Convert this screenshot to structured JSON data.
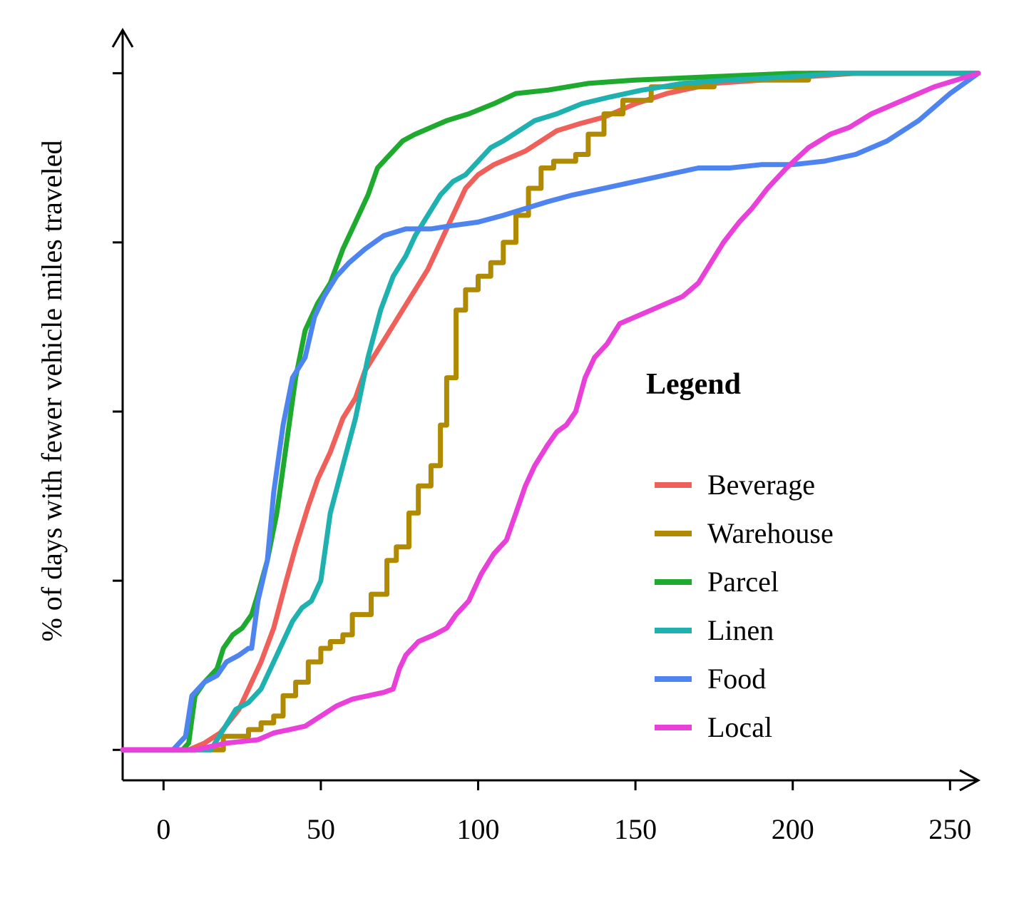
{
  "chart_data": {
    "type": "line",
    "ylabel": "% of days with fewer vehicle miles traveled",
    "xlabel": "",
    "xlim": [
      -13,
      259
    ],
    "ylim": [
      -0.045,
      1.045
    ],
    "x_ticks": [
      0,
      50,
      100,
      150,
      200,
      250
    ],
    "y_ticks": [
      0,
      0.25,
      0.5,
      0.75,
      1.0
    ],
    "y_tick_labels_shown": false,
    "grid": false,
    "legend": {
      "title": "Legend",
      "position": "right"
    },
    "series": [
      {
        "name": "Beverage",
        "color": "#F0605A",
        "points": [
          [
            -13,
            0
          ],
          [
            8,
            0
          ],
          [
            13,
            0.01
          ],
          [
            18,
            0.025
          ],
          [
            24,
            0.06
          ],
          [
            28,
            0.1
          ],
          [
            31,
            0.13
          ],
          [
            35,
            0.18
          ],
          [
            39,
            0.25
          ],
          [
            42,
            0.3
          ],
          [
            46,
            0.36
          ],
          [
            49,
            0.4
          ],
          [
            53,
            0.44
          ],
          [
            57,
            0.49
          ],
          [
            61,
            0.52
          ],
          [
            64,
            0.56
          ],
          [
            68,
            0.59
          ],
          [
            72,
            0.62
          ],
          [
            76,
            0.65
          ],
          [
            80,
            0.68
          ],
          [
            84,
            0.71
          ],
          [
            88,
            0.75
          ],
          [
            92,
            0.79
          ],
          [
            96,
            0.83
          ],
          [
            100,
            0.85
          ],
          [
            105,
            0.865
          ],
          [
            110,
            0.875
          ],
          [
            115,
            0.885
          ],
          [
            120,
            0.9
          ],
          [
            125,
            0.915
          ],
          [
            132,
            0.925
          ],
          [
            140,
            0.935
          ],
          [
            150,
            0.955
          ],
          [
            160,
            0.97
          ],
          [
            175,
            0.985
          ],
          [
            190,
            0.99
          ],
          [
            205,
            0.995
          ],
          [
            220,
            1.0
          ],
          [
            259,
            1.0
          ]
        ]
      },
      {
        "name": "Warehouse",
        "color": "#B08A00",
        "points": [
          [
            -13,
            0
          ],
          [
            19,
            0
          ],
          [
            19,
            0.02
          ],
          [
            27,
            0.02
          ],
          [
            27,
            0.03
          ],
          [
            31,
            0.03
          ],
          [
            31,
            0.04
          ],
          [
            35,
            0.04
          ],
          [
            35,
            0.05
          ],
          [
            38,
            0.05
          ],
          [
            38,
            0.08
          ],
          [
            42,
            0.08
          ],
          [
            42,
            0.1
          ],
          [
            46,
            0.1
          ],
          [
            46,
            0.13
          ],
          [
            50,
            0.13
          ],
          [
            50,
            0.15
          ],
          [
            53,
            0.15
          ],
          [
            53,
            0.16
          ],
          [
            57,
            0.16
          ],
          [
            57,
            0.17
          ],
          [
            60,
            0.17
          ],
          [
            60,
            0.2
          ],
          [
            66,
            0.2
          ],
          [
            66,
            0.23
          ],
          [
            71,
            0.23
          ],
          [
            71,
            0.28
          ],
          [
            74,
            0.28
          ],
          [
            74,
            0.3
          ],
          [
            78,
            0.3
          ],
          [
            78,
            0.35
          ],
          [
            81,
            0.35
          ],
          [
            81,
            0.39
          ],
          [
            85,
            0.39
          ],
          [
            85,
            0.42
          ],
          [
            88,
            0.42
          ],
          [
            88,
            0.48
          ],
          [
            90,
            0.48
          ],
          [
            90,
            0.55
          ],
          [
            93,
            0.55
          ],
          [
            93,
            0.65
          ],
          [
            96,
            0.65
          ],
          [
            96,
            0.68
          ],
          [
            100,
            0.68
          ],
          [
            100,
            0.7
          ],
          [
            104,
            0.7
          ],
          [
            104,
            0.72
          ],
          [
            108,
            0.72
          ],
          [
            108,
            0.75
          ],
          [
            112,
            0.75
          ],
          [
            112,
            0.79
          ],
          [
            116,
            0.79
          ],
          [
            116,
            0.83
          ],
          [
            120,
            0.83
          ],
          [
            120,
            0.86
          ],
          [
            124,
            0.86
          ],
          [
            124,
            0.87
          ],
          [
            131,
            0.87
          ],
          [
            131,
            0.88
          ],
          [
            135,
            0.88
          ],
          [
            135,
            0.91
          ],
          [
            140,
            0.91
          ],
          [
            140,
            0.94
          ],
          [
            146,
            0.94
          ],
          [
            146,
            0.96
          ],
          [
            155,
            0.96
          ],
          [
            155,
            0.98
          ],
          [
            175,
            0.98
          ],
          [
            175,
            0.99
          ],
          [
            205,
            0.99
          ],
          [
            205,
            1.0
          ],
          [
            259,
            1.0
          ]
        ]
      },
      {
        "name": "Parcel",
        "color": "#1EAA2E",
        "points": [
          [
            -13,
            0
          ],
          [
            6,
            0
          ],
          [
            8,
            0.01
          ],
          [
            10,
            0.08
          ],
          [
            13,
            0.1
          ],
          [
            17,
            0.12
          ],
          [
            19,
            0.15
          ],
          [
            22,
            0.17
          ],
          [
            25,
            0.18
          ],
          [
            28,
            0.2
          ],
          [
            30,
            0.23
          ],
          [
            33,
            0.28
          ],
          [
            36,
            0.35
          ],
          [
            39,
            0.45
          ],
          [
            42,
            0.55
          ],
          [
            45,
            0.62
          ],
          [
            49,
            0.66
          ],
          [
            53,
            0.69
          ],
          [
            57,
            0.74
          ],
          [
            61,
            0.78
          ],
          [
            65,
            0.82
          ],
          [
            68,
            0.86
          ],
          [
            72,
            0.88
          ],
          [
            76,
            0.9
          ],
          [
            80,
            0.91
          ],
          [
            85,
            0.92
          ],
          [
            90,
            0.93
          ],
          [
            97,
            0.94
          ],
          [
            105,
            0.955
          ],
          [
            112,
            0.97
          ],
          [
            122,
            0.975
          ],
          [
            135,
            0.985
          ],
          [
            150,
            0.99
          ],
          [
            175,
            0.995
          ],
          [
            200,
            1.0
          ],
          [
            259,
            1.0
          ]
        ]
      },
      {
        "name": "Linen",
        "color": "#1FB0B0",
        "points": [
          [
            -13,
            0
          ],
          [
            15,
            0
          ],
          [
            19,
            0.03
          ],
          [
            23,
            0.06
          ],
          [
            27,
            0.07
          ],
          [
            31,
            0.09
          ],
          [
            35,
            0.13
          ],
          [
            38,
            0.16
          ],
          [
            41,
            0.19
          ],
          [
            44,
            0.21
          ],
          [
            47,
            0.22
          ],
          [
            50,
            0.25
          ],
          [
            53,
            0.35
          ],
          [
            57,
            0.42
          ],
          [
            61,
            0.49
          ],
          [
            65,
            0.58
          ],
          [
            69,
            0.65
          ],
          [
            73,
            0.7
          ],
          [
            77,
            0.73
          ],
          [
            80,
            0.76
          ],
          [
            84,
            0.79
          ],
          [
            88,
            0.82
          ],
          [
            92,
            0.84
          ],
          [
            96,
            0.85
          ],
          [
            100,
            0.87
          ],
          [
            104,
            0.89
          ],
          [
            108,
            0.9
          ],
          [
            113,
            0.915
          ],
          [
            118,
            0.93
          ],
          [
            125,
            0.94
          ],
          [
            133,
            0.955
          ],
          [
            142,
            0.965
          ],
          [
            152,
            0.975
          ],
          [
            165,
            0.985
          ],
          [
            180,
            0.99
          ],
          [
            200,
            0.995
          ],
          [
            215,
            1.0
          ],
          [
            259,
            1.0
          ]
        ]
      },
      {
        "name": "Food",
        "color": "#4E84F0",
        "points": [
          [
            -13,
            0
          ],
          [
            3,
            0
          ],
          [
            5,
            0.01
          ],
          [
            7,
            0.02
          ],
          [
            9,
            0.08
          ],
          [
            13,
            0.1
          ],
          [
            17,
            0.11
          ],
          [
            20,
            0.13
          ],
          [
            24,
            0.14
          ],
          [
            27,
            0.15
          ],
          [
            28,
            0.15
          ],
          [
            30,
            0.22
          ],
          [
            33,
            0.28
          ],
          [
            35,
            0.38
          ],
          [
            38,
            0.48
          ],
          [
            41,
            0.55
          ],
          [
            45,
            0.58
          ],
          [
            48,
            0.64
          ],
          [
            51,
            0.67
          ],
          [
            55,
            0.7
          ],
          [
            59,
            0.72
          ],
          [
            64,
            0.74
          ],
          [
            70,
            0.76
          ],
          [
            77,
            0.77
          ],
          [
            85,
            0.77
          ],
          [
            92,
            0.775
          ],
          [
            100,
            0.78
          ],
          [
            108,
            0.79
          ],
          [
            115,
            0.8
          ],
          [
            122,
            0.81
          ],
          [
            130,
            0.82
          ],
          [
            140,
            0.83
          ],
          [
            150,
            0.84
          ],
          [
            160,
            0.85
          ],
          [
            170,
            0.86
          ],
          [
            180,
            0.86
          ],
          [
            190,
            0.865
          ],
          [
            200,
            0.865
          ],
          [
            210,
            0.87
          ],
          [
            220,
            0.88
          ],
          [
            230,
            0.9
          ],
          [
            240,
            0.93
          ],
          [
            250,
            0.97
          ],
          [
            259,
            1.0
          ]
        ]
      },
      {
        "name": "Local",
        "color": "#E840D8",
        "points": [
          [
            -13,
            0
          ],
          [
            10,
            0
          ],
          [
            15,
            0.005
          ],
          [
            20,
            0.01
          ],
          [
            30,
            0.015
          ],
          [
            35,
            0.025
          ],
          [
            40,
            0.03
          ],
          [
            45,
            0.035
          ],
          [
            50,
            0.05
          ],
          [
            55,
            0.065
          ],
          [
            60,
            0.075
          ],
          [
            65,
            0.08
          ],
          [
            70,
            0.085
          ],
          [
            73,
            0.09
          ],
          [
            75,
            0.12
          ],
          [
            77,
            0.14
          ],
          [
            81,
            0.16
          ],
          [
            86,
            0.17
          ],
          [
            90,
            0.18
          ],
          [
            93,
            0.2
          ],
          [
            97,
            0.22
          ],
          [
            101,
            0.26
          ],
          [
            105,
            0.29
          ],
          [
            109,
            0.31
          ],
          [
            112,
            0.35
          ],
          [
            115,
            0.39
          ],
          [
            118,
            0.42
          ],
          [
            122,
            0.45
          ],
          [
            125,
            0.47
          ],
          [
            128,
            0.48
          ],
          [
            131,
            0.5
          ],
          [
            134,
            0.55
          ],
          [
            137,
            0.58
          ],
          [
            141,
            0.6
          ],
          [
            145,
            0.63
          ],
          [
            150,
            0.64
          ],
          [
            155,
            0.65
          ],
          [
            160,
            0.66
          ],
          [
            165,
            0.67
          ],
          [
            170,
            0.69
          ],
          [
            174,
            0.72
          ],
          [
            178,
            0.75
          ],
          [
            183,
            0.78
          ],
          [
            187,
            0.8
          ],
          [
            192,
            0.83
          ],
          [
            198,
            0.86
          ],
          [
            205,
            0.89
          ],
          [
            212,
            0.91
          ],
          [
            218,
            0.92
          ],
          [
            225,
            0.94
          ],
          [
            235,
            0.96
          ],
          [
            245,
            0.98
          ],
          [
            259,
            1.0
          ]
        ]
      }
    ]
  }
}
